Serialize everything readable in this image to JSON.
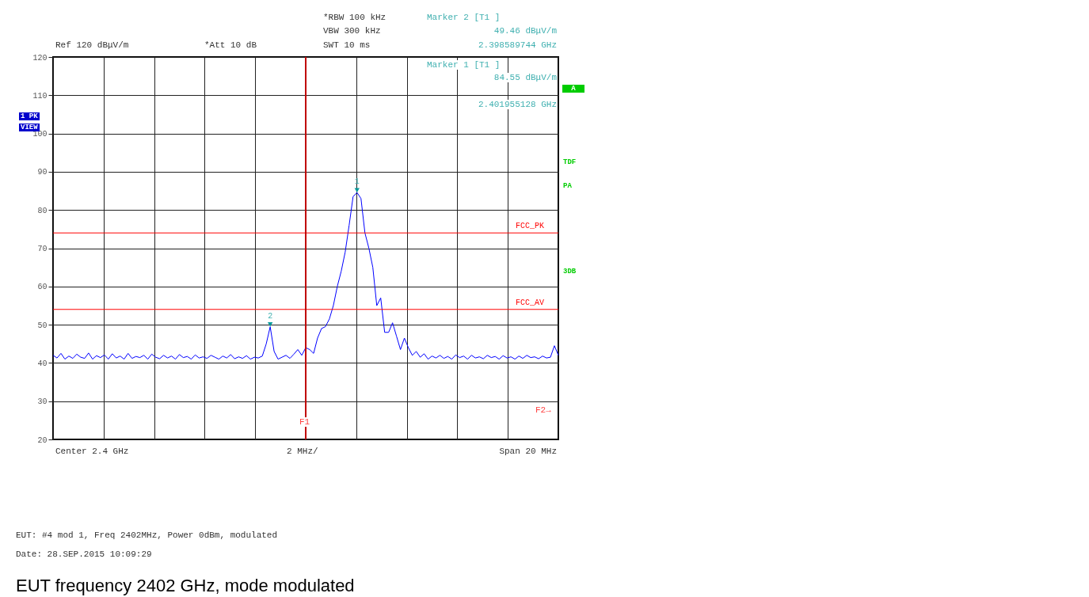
{
  "chart_data": {
    "type": "line",
    "categories": [
      null,
      null,
      null,
      null,
      null,
      null,
      null,
      null,
      null,
      null,
      null,
      null,
      null,
      null,
      null,
      null,
      null,
      null,
      null,
      null,
      null,
      null,
      null,
      null,
      null,
      null,
      null,
      null,
      null,
      null,
      null,
      null,
      null,
      null,
      null,
      null,
      null,
      null,
      null,
      null,
      null,
      null,
      null,
      null,
      null,
      null,
      null,
      null,
      null,
      null,
      null,
      null,
      null,
      null,
      null,
      null,
      null,
      null,
      null,
      null,
      null,
      null,
      null,
      null,
      null,
      null,
      null,
      null,
      null,
      null,
      null,
      null,
      null,
      null,
      null,
      null,
      null,
      null,
      null,
      null,
      null,
      null,
      null,
      null,
      null,
      null,
      null,
      null,
      null,
      null,
      null,
      null,
      null,
      null,
      null,
      null,
      null,
      null,
      null,
      null,
      null,
      null,
      null,
      null,
      null,
      null,
      null,
      null,
      null,
      null,
      null,
      null,
      null,
      null,
      null,
      null,
      null,
      null,
      null,
      null,
      null,
      null,
      null,
      null,
      null,
      null,
      null,
      null,
      null
    ],
    "series": [
      {
        "color": "#0000ff",
        "values": [
          42,
          41.3,
          42.5,
          41,
          41.8,
          41.2,
          42.3,
          41.5,
          41.2,
          42.6,
          41,
          41.9,
          41.4,
          42.1,
          41,
          42.4,
          41.3,
          41.8,
          41,
          42.5,
          41.2,
          41.7,
          41.4,
          42,
          41,
          42.3,
          41.5,
          41.1,
          42,
          41.3,
          41.8,
          41,
          42.2,
          41.4,
          41.7,
          41,
          42.1,
          41.3,
          41.6,
          41.2,
          42,
          41.5,
          41,
          41.8,
          41.3,
          42.2,
          41.1,
          41.6,
          41.2,
          41.9,
          41,
          41.5,
          41.3,
          41.8,
          45,
          49.46,
          43,
          41,
          41.5,
          42,
          41.2,
          42.3,
          43.5,
          42,
          44,
          43.5,
          42.5,
          46.5,
          49,
          49.5,
          51.5,
          55,
          60,
          64,
          69,
          76,
          83.5,
          84.55,
          83,
          74,
          70,
          65,
          55,
          57,
          48,
          48,
          50.5,
          47,
          43.5,
          46.5,
          44,
          42,
          43,
          41.5,
          42.4,
          41,
          41.8,
          41.3,
          42,
          41.2,
          41.7,
          41,
          42.1,
          41.4,
          41.8,
          41,
          42,
          41.3,
          41.6,
          41.1,
          42,
          41.4,
          41.7,
          41,
          41.9,
          41.3,
          41.6,
          41,
          41.8,
          41.2,
          42,
          41.4,
          41.6,
          41.1,
          41.8,
          41.3,
          41.5,
          44.5,
          42
        ]
      }
    ],
    "ylim": [
      20,
      120
    ],
    "yticks": [
      20,
      30,
      40,
      50,
      60,
      70,
      80,
      90,
      100,
      110,
      120
    ],
    "tick_labels": "y",
    "grid": true,
    "ref_lines": [
      {
        "axis": "y",
        "value": 74,
        "label": "FCC_PK",
        "color": "#ff0000"
      },
      {
        "axis": "y",
        "value": 54,
        "label": "FCC_AV",
        "color": "#ff0000"
      }
    ],
    "annotations": [
      "*RBW 100 kHz",
      "VBW 300 kHz",
      "SWT 10 ms",
      "Ref 120 dBμV/m",
      "*Att 10 dB",
      "Marker 2 [T1 ]",
      "49.46 dBμV/m",
      "2.398589744 GHz",
      "Marker 1 [T1 ]",
      "84.55 dBμV/m",
      "2.401955128 GHz",
      "1 PK",
      "VIEW",
      "A",
      "TDF",
      "PA",
      "3DB",
      "Center 2.4 GHz",
      "2 MHz/",
      "Span 20 MHz",
      "F2→",
      "EUT: #4 mod 1, Freq 2402MHz, Power 0dBm, modulated",
      "Date: 28.SEP.2015 10:09:29",
      "EUT frequency 2402 GHz, mode modulated",
      "F1",
      {
        "text": "1",
        "y": 84.55
      },
      {
        "text": "2",
        "y": 49.46
      }
    ]
  }
}
